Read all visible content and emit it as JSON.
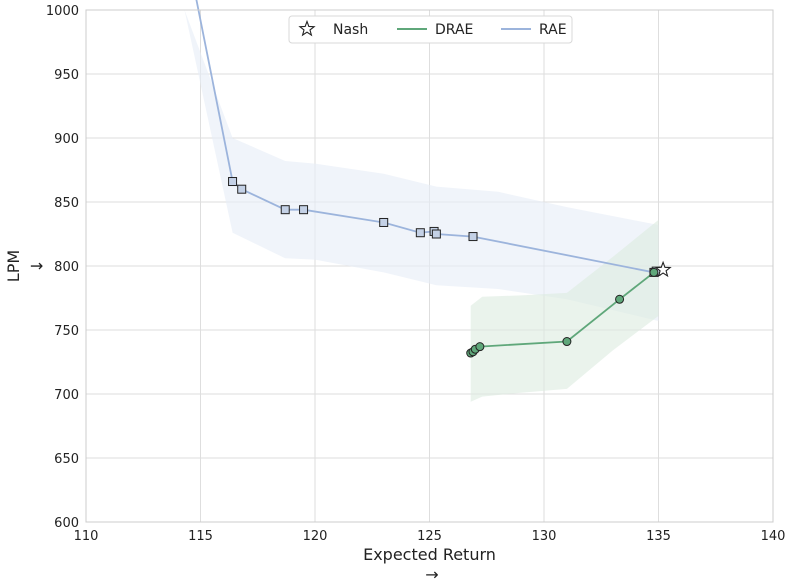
{
  "chart_data": {
    "type": "line",
    "xlabel": "Expected Return",
    "ylabel": "LPM",
    "x_arrow": "→",
    "y_arrow": "↓",
    "xlim": [
      110,
      140
    ],
    "ylim": [
      600,
      1000
    ],
    "xticks": [
      110,
      115,
      120,
      125,
      130,
      135,
      140
    ],
    "yticks": [
      600,
      650,
      700,
      750,
      800,
      850,
      900,
      950,
      1000
    ],
    "grid": true,
    "legend": {
      "placement": "top-center",
      "entries": [
        {
          "label": "Nash",
          "marker": "star"
        },
        {
          "label": "DRAE",
          "marker": "line",
          "color": "#5fa77a"
        },
        {
          "label": "RAE",
          "marker": "line",
          "color": "#9cb4dc"
        }
      ]
    },
    "series": [
      {
        "name": "RAE",
        "color": "#9cb4dc",
        "band_color": "#e6ecf6",
        "marker": "square",
        "marker_face": "#c4d1e6",
        "points": [
          [
            114.8,
            1010
          ],
          [
            116.4,
            866
          ],
          [
            116.8,
            860
          ],
          [
            118.7,
            844
          ],
          [
            119.5,
            844
          ],
          [
            123.0,
            834
          ],
          [
            124.6,
            826
          ],
          [
            125.2,
            827
          ],
          [
            125.3,
            825
          ],
          [
            126.9,
            823
          ],
          [
            134.8,
            795
          ],
          [
            134.9,
            796
          ]
        ],
        "band": [
          [
            114.3,
            1010,
            1010
          ],
          [
            116.4,
            826,
            900
          ],
          [
            118.7,
            806,
            882
          ],
          [
            120,
            805,
            880
          ],
          [
            123.0,
            795,
            872
          ],
          [
            125.3,
            785,
            862
          ],
          [
            128.0,
            782,
            858
          ],
          [
            131.0,
            774,
            846
          ],
          [
            135.0,
            757,
            832
          ]
        ]
      },
      {
        "name": "DRAE",
        "color": "#5fa77a",
        "band_color": "#dcebdf",
        "marker": "circle",
        "marker_face": "#5fa77a",
        "points": [
          [
            126.8,
            732
          ],
          [
            126.9,
            733
          ],
          [
            127.0,
            735
          ],
          [
            127.2,
            737
          ],
          [
            131.0,
            741
          ],
          [
            133.3,
            774
          ],
          [
            134.8,
            795
          ]
        ],
        "band": [
          [
            126.8,
            694,
            769
          ],
          [
            127.3,
            698,
            776
          ],
          [
            129.0,
            701,
            777
          ],
          [
            131.0,
            704,
            779
          ],
          [
            133.0,
            734,
            807
          ],
          [
            135.0,
            761,
            836
          ]
        ]
      },
      {
        "name": "Nash",
        "marker": "star",
        "points": [
          [
            135.2,
            797
          ]
        ]
      }
    ]
  }
}
